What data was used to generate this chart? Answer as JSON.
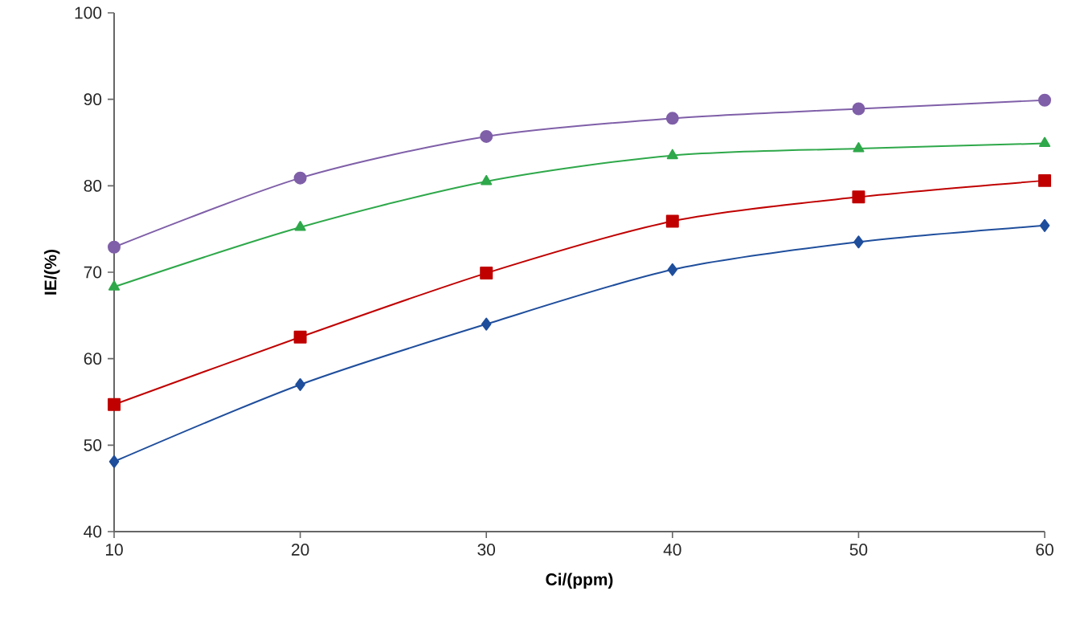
{
  "chart_data": {
    "type": "line",
    "xlabel": "Ci/(ppm)",
    "ylabel": "IE/(%)",
    "x": [
      10,
      20,
      30,
      40,
      50,
      60
    ],
    "series": [
      {
        "color": "#1f4e9c",
        "marker": "diamond",
        "values": [
          48.1,
          57.0,
          64.0,
          70.3,
          73.5,
          75.4
        ]
      },
      {
        "color": "#c00000",
        "marker": "square",
        "values": [
          54.7,
          62.5,
          69.9,
          75.9,
          78.7,
          80.6
        ]
      },
      {
        "color": "#2ea84a",
        "marker": "triangle",
        "values": [
          68.3,
          75.2,
          80.5,
          83.5,
          84.3,
          84.9
        ]
      },
      {
        "color": "#7f5fa8",
        "marker": "circle",
        "values": [
          72.9,
          80.9,
          85.7,
          87.8,
          88.9,
          89.9
        ]
      }
    ],
    "xlim": [
      10,
      60
    ],
    "xticks": [
      10,
      20,
      30,
      40,
      50,
      60
    ],
    "ylim": [
      40,
      100
    ],
    "yticks": [
      40,
      50,
      60,
      70,
      80,
      90,
      100
    ],
    "grid": false
  }
}
